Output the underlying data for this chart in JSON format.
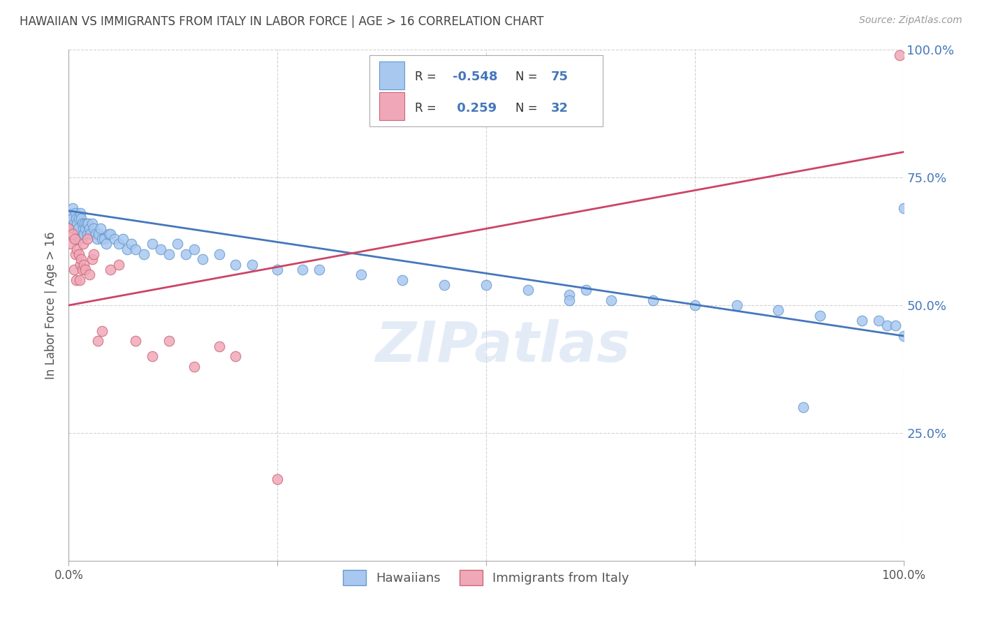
{
  "title": "HAWAIIAN VS IMMIGRANTS FROM ITALY IN LABOR FORCE | AGE > 16 CORRELATION CHART",
  "source": "Source: ZipAtlas.com",
  "ylabel_label": "In Labor Force | Age > 16",
  "hawaiians_color": "#a8c8f0",
  "italy_color": "#f0a8b8",
  "hawaiians_edge_color": "#6699cc",
  "italy_edge_color": "#cc6677",
  "hawaiians_line_color": "#4477bb",
  "italy_line_color": "#cc4466",
  "background_color": "#ffffff",
  "grid_color": "#cccccc",
  "watermark": "ZIPatlas",
  "right_tick_color": "#4477bb",
  "xlim": [
    0.0,
    1.0
  ],
  "ylim": [
    0.0,
    1.0
  ],
  "blue_line_x0": 0.0,
  "blue_line_y0": 0.685,
  "blue_line_x1": 1.0,
  "blue_line_y1": 0.44,
  "pink_line_x0": 0.0,
  "pink_line_y0": 0.5,
  "pink_line_x1": 1.0,
  "pink_line_y1": 0.8,
  "hawaiians_x": [
    0.0,
    0.004,
    0.005,
    0.006,
    0.007,
    0.008,
    0.009,
    0.01,
    0.011,
    0.012,
    0.013,
    0.014,
    0.015,
    0.016,
    0.017,
    0.018,
    0.019,
    0.02,
    0.021,
    0.022,
    0.023,
    0.025,
    0.026,
    0.028,
    0.03,
    0.032,
    0.034,
    0.036,
    0.038,
    0.04,
    0.042,
    0.045,
    0.048,
    0.05,
    0.055,
    0.06,
    0.065,
    0.07,
    0.075,
    0.08,
    0.09,
    0.1,
    0.11,
    0.12,
    0.13,
    0.14,
    0.15,
    0.16,
    0.18,
    0.2,
    0.22,
    0.25,
    0.28,
    0.3,
    0.35,
    0.4,
    0.45,
    0.5,
    0.55,
    0.6,
    0.65,
    0.7,
    0.75,
    0.8,
    0.85,
    0.88,
    0.9,
    0.95,
    0.97,
    0.98,
    0.99,
    1.0,
    1.0,
    0.6,
    0.62
  ],
  "hawaiians_y": [
    0.68,
    0.67,
    0.69,
    0.66,
    0.65,
    0.68,
    0.67,
    0.66,
    0.65,
    0.67,
    0.63,
    0.68,
    0.67,
    0.66,
    0.65,
    0.64,
    0.66,
    0.65,
    0.66,
    0.64,
    0.66,
    0.65,
    0.64,
    0.66,
    0.65,
    0.64,
    0.63,
    0.64,
    0.65,
    0.63,
    0.63,
    0.62,
    0.64,
    0.64,
    0.63,
    0.62,
    0.63,
    0.61,
    0.62,
    0.61,
    0.6,
    0.62,
    0.61,
    0.6,
    0.62,
    0.6,
    0.61,
    0.59,
    0.6,
    0.58,
    0.58,
    0.57,
    0.57,
    0.57,
    0.56,
    0.55,
    0.54,
    0.54,
    0.53,
    0.52,
    0.51,
    0.51,
    0.5,
    0.5,
    0.49,
    0.3,
    0.48,
    0.47,
    0.47,
    0.46,
    0.46,
    0.69,
    0.44,
    0.51,
    0.53
  ],
  "italy_x": [
    0.0,
    0.003,
    0.005,
    0.006,
    0.007,
    0.008,
    0.009,
    0.01,
    0.012,
    0.013,
    0.014,
    0.015,
    0.016,
    0.017,
    0.018,
    0.02,
    0.022,
    0.025,
    0.028,
    0.03,
    0.035,
    0.04,
    0.05,
    0.06,
    0.08,
    0.1,
    0.12,
    0.15,
    0.18,
    0.2,
    0.25,
    0.995
  ],
  "italy_y": [
    0.65,
    0.62,
    0.64,
    0.57,
    0.63,
    0.6,
    0.55,
    0.61,
    0.6,
    0.55,
    0.58,
    0.59,
    0.57,
    0.62,
    0.58,
    0.57,
    0.63,
    0.56,
    0.59,
    0.6,
    0.43,
    0.45,
    0.57,
    0.58,
    0.43,
    0.4,
    0.43,
    0.38,
    0.42,
    0.4,
    0.16,
    0.99
  ]
}
